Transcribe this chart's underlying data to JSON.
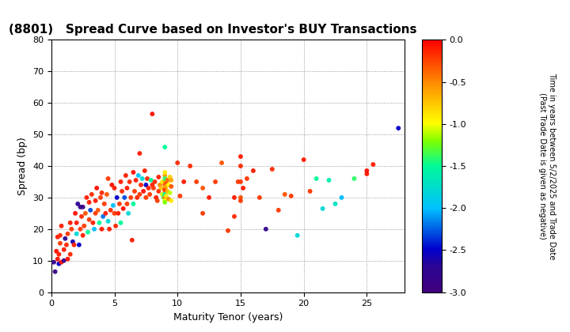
{
  "title": "(8801)   Spread Curve based on Investor's BUY Transactions",
  "xlabel": "Maturity Tenor (years)",
  "ylabel": "Spread (bp)",
  "colorbar_label_top": "Time in years between 5/2/2025 and Trade Date",
  "colorbar_label_bot": "(Past Trade Date is given as negative)",
  "xlim": [
    0,
    28
  ],
  "ylim": [
    0,
    80
  ],
  "xticks": [
    0,
    5,
    10,
    15,
    20,
    25
  ],
  "yticks": [
    0,
    10,
    20,
    30,
    40,
    50,
    60,
    70,
    80
  ],
  "clim": [
    -3.0,
    0.0
  ],
  "cticks": [
    0.0,
    -0.5,
    -1.0,
    -1.5,
    -2.0,
    -2.5,
    -3.0
  ],
  "points": [
    [
      0.2,
      9.5,
      -2.8
    ],
    [
      0.3,
      6.5,
      -2.9
    ],
    [
      0.4,
      13.0,
      -0.05
    ],
    [
      0.5,
      10.5,
      -0.05
    ],
    [
      0.5,
      17.5,
      -0.1
    ],
    [
      0.6,
      9.0,
      -2.5
    ],
    [
      0.6,
      12.0,
      -0.1
    ],
    [
      0.7,
      18.0,
      -0.15
    ],
    [
      0.7,
      15.5,
      -0.2
    ],
    [
      0.8,
      21.0,
      -0.1
    ],
    [
      0.8,
      9.5,
      -0.05
    ],
    [
      1.0,
      10.0,
      -2.8
    ],
    [
      1.0,
      13.5,
      -0.1
    ],
    [
      1.1,
      17.0,
      -2.7
    ],
    [
      1.2,
      15.0,
      -0.15
    ],
    [
      1.3,
      10.5,
      -0.05
    ],
    [
      1.3,
      18.5,
      -0.2
    ],
    [
      1.5,
      22.0,
      -0.1
    ],
    [
      1.5,
      12.0,
      -0.15
    ],
    [
      1.6,
      20.0,
      -0.2
    ],
    [
      1.7,
      16.0,
      -2.6
    ],
    [
      1.8,
      15.0,
      -0.1
    ],
    [
      1.9,
      25.0,
      -0.05
    ],
    [
      2.0,
      18.5,
      -1.8
    ],
    [
      2.0,
      22.0,
      -0.1
    ],
    [
      2.1,
      28.0,
      -2.7
    ],
    [
      2.2,
      15.0,
      -2.5
    ],
    [
      2.3,
      20.0,
      -0.2
    ],
    [
      2.3,
      27.0,
      -2.8
    ],
    [
      2.4,
      24.0,
      -0.15
    ],
    [
      2.5,
      18.0,
      -0.1
    ],
    [
      2.5,
      27.0,
      -2.9
    ],
    [
      2.6,
      21.0,
      -0.2
    ],
    [
      2.7,
      25.0,
      -0.3
    ],
    [
      2.8,
      30.0,
      -0.1
    ],
    [
      2.9,
      19.0,
      -1.5
    ],
    [
      3.0,
      23.0,
      -0.2
    ],
    [
      3.0,
      28.5,
      -0.1
    ],
    [
      3.1,
      26.0,
      -2.3
    ],
    [
      3.2,
      31.0,
      -0.15
    ],
    [
      3.3,
      22.0,
      -0.1
    ],
    [
      3.4,
      20.0,
      -2.0
    ],
    [
      3.5,
      25.0,
      -0.2
    ],
    [
      3.5,
      29.0,
      -0.1
    ],
    [
      3.6,
      33.0,
      -0.05
    ],
    [
      3.7,
      26.0,
      -0.3
    ],
    [
      3.8,
      22.0,
      -1.5
    ],
    [
      3.9,
      30.0,
      -0.2
    ],
    [
      4.0,
      20.0,
      -0.1
    ],
    [
      4.0,
      31.5,
      -0.15
    ],
    [
      4.1,
      24.0,
      -2.2
    ],
    [
      4.2,
      28.0,
      -0.2
    ],
    [
      4.3,
      25.0,
      -0.1
    ],
    [
      4.4,
      31.0,
      -0.3
    ],
    [
      4.5,
      22.5,
      -1.8
    ],
    [
      4.5,
      36.0,
      -0.2
    ],
    [
      4.6,
      20.0,
      -0.1
    ],
    [
      4.7,
      26.0,
      -0.15
    ],
    [
      4.8,
      34.0,
      -0.05
    ],
    [
      4.9,
      27.5,
      -2.0
    ],
    [
      5.0,
      25.0,
      -0.2
    ],
    [
      5.0,
      33.0,
      -0.1
    ],
    [
      5.1,
      21.0,
      -0.15
    ],
    [
      5.2,
      30.0,
      -2.5
    ],
    [
      5.3,
      25.0,
      -0.1
    ],
    [
      5.4,
      28.0,
      -0.2
    ],
    [
      5.5,
      35.0,
      -0.1
    ],
    [
      5.5,
      22.0,
      -1.5
    ],
    [
      5.6,
      32.0,
      -0.15
    ],
    [
      5.7,
      26.5,
      -0.05
    ],
    [
      5.8,
      30.0,
      -2.3
    ],
    [
      5.9,
      37.0,
      -0.1
    ],
    [
      6.0,
      28.0,
      -0.2
    ],
    [
      6.0,
      33.0,
      -0.1
    ],
    [
      6.1,
      25.0,
      -1.8
    ],
    [
      6.2,
      35.0,
      -0.15
    ],
    [
      6.3,
      30.0,
      -0.2
    ],
    [
      6.4,
      16.5,
      -0.1
    ],
    [
      6.5,
      38.0,
      -0.05
    ],
    [
      6.5,
      28.0,
      -1.5
    ],
    [
      6.6,
      32.0,
      -0.2
    ],
    [
      6.7,
      35.5,
      -0.1
    ],
    [
      6.8,
      30.0,
      -0.15
    ],
    [
      6.9,
      37.0,
      -2.0
    ],
    [
      7.0,
      44.0,
      -0.1
    ],
    [
      7.0,
      31.0,
      -0.2
    ],
    [
      7.1,
      34.0,
      -0.15
    ],
    [
      7.2,
      36.0,
      -1.8
    ],
    [
      7.3,
      32.0,
      -0.05
    ],
    [
      7.4,
      38.5,
      -0.1
    ],
    [
      7.5,
      30.0,
      -0.2
    ],
    [
      7.5,
      34.0,
      -2.5
    ],
    [
      7.6,
      36.0,
      -0.15
    ],
    [
      7.7,
      33.0,
      -0.1
    ],
    [
      7.8,
      31.0,
      -0.2
    ],
    [
      7.9,
      35.5,
      -1.5
    ],
    [
      8.0,
      56.5,
      -0.05
    ],
    [
      8.0,
      34.0,
      -0.1
    ],
    [
      8.1,
      33.0,
      -0.2
    ],
    [
      8.2,
      35.0,
      -0.15
    ],
    [
      8.3,
      30.0,
      -0.1
    ],
    [
      8.4,
      29.0,
      -0.2
    ],
    [
      8.5,
      36.5,
      -0.1
    ],
    [
      8.5,
      32.0,
      -0.15
    ],
    [
      8.6,
      34.0,
      -0.5
    ],
    [
      8.7,
      33.0,
      -0.7
    ],
    [
      8.8,
      35.0,
      -0.9
    ],
    [
      8.8,
      31.0,
      -1.1
    ],
    [
      8.9,
      30.0,
      -1.3
    ],
    [
      9.0,
      46.0,
      -1.5
    ],
    [
      9.0,
      34.0,
      -0.3
    ],
    [
      9.0,
      33.0,
      -0.8
    ],
    [
      9.0,
      32.0,
      -0.5
    ],
    [
      9.0,
      30.0,
      -0.4
    ],
    [
      9.0,
      29.0,
      -1.0
    ],
    [
      9.0,
      28.5,
      -1.2
    ],
    [
      9.0,
      37.0,
      -0.6
    ],
    [
      9.0,
      35.0,
      -0.7
    ],
    [
      9.0,
      38.0,
      -0.9
    ],
    [
      9.0,
      36.0,
      -1.4
    ],
    [
      9.0,
      32.5,
      -0.2
    ],
    [
      9.0,
      31.0,
      -1.6
    ],
    [
      9.1,
      34.5,
      -0.3
    ],
    [
      9.1,
      33.5,
      -0.6
    ],
    [
      9.1,
      30.5,
      -0.9
    ],
    [
      9.2,
      35.5,
      -0.4
    ],
    [
      9.2,
      32.0,
      -0.7
    ],
    [
      9.3,
      34.0,
      -1.0
    ],
    [
      9.3,
      29.5,
      -0.5
    ],
    [
      9.4,
      36.5,
      -0.8
    ],
    [
      9.4,
      31.5,
      -1.1
    ],
    [
      9.5,
      33.5,
      -0.3
    ],
    [
      9.5,
      35.5,
      -0.6
    ],
    [
      9.5,
      29.0,
      -0.9
    ],
    [
      10.0,
      41.0,
      -0.15
    ],
    [
      10.2,
      30.5,
      -0.2
    ],
    [
      10.5,
      35.0,
      -0.1
    ],
    [
      11.0,
      40.0,
      -0.15
    ],
    [
      11.5,
      35.0,
      -0.2
    ],
    [
      12.0,
      33.0,
      -0.3
    ],
    [
      12.0,
      25.0,
      -0.2
    ],
    [
      12.5,
      30.0,
      -0.1
    ],
    [
      13.0,
      35.0,
      -0.2
    ],
    [
      13.5,
      41.0,
      -0.3
    ],
    [
      14.0,
      19.5,
      -0.2
    ],
    [
      14.5,
      24.0,
      -0.15
    ],
    [
      14.5,
      30.0,
      -0.1
    ],
    [
      14.8,
      35.0,
      -0.2
    ],
    [
      15.0,
      43.0,
      -0.1
    ],
    [
      15.0,
      40.0,
      -0.15
    ],
    [
      15.0,
      35.0,
      -0.2
    ],
    [
      15.0,
      30.0,
      -0.3
    ],
    [
      15.0,
      29.0,
      -0.2
    ],
    [
      15.2,
      33.0,
      -0.1
    ],
    [
      15.5,
      36.0,
      -0.2
    ],
    [
      16.0,
      38.5,
      -0.1
    ],
    [
      16.5,
      30.0,
      -0.2
    ],
    [
      17.0,
      20.0,
      -2.8
    ],
    [
      17.5,
      39.0,
      -0.15
    ],
    [
      18.0,
      26.0,
      -0.2
    ],
    [
      18.5,
      31.0,
      -0.3
    ],
    [
      19.0,
      30.5,
      -0.2
    ],
    [
      19.5,
      18.0,
      -1.8
    ],
    [
      20.0,
      42.0,
      -0.1
    ],
    [
      20.5,
      32.0,
      -0.2
    ],
    [
      21.0,
      36.0,
      -1.5
    ],
    [
      21.5,
      26.5,
      -1.8
    ],
    [
      22.0,
      35.5,
      -1.6
    ],
    [
      22.5,
      28.0,
      -1.7
    ],
    [
      23.0,
      30.0,
      -2.0
    ],
    [
      24.0,
      36.0,
      -1.4
    ],
    [
      25.0,
      37.5,
      -0.1
    ],
    [
      25.5,
      40.5,
      -0.1
    ],
    [
      27.5,
      52.0,
      -2.5
    ],
    [
      25.0,
      38.5,
      -0.05
    ]
  ]
}
